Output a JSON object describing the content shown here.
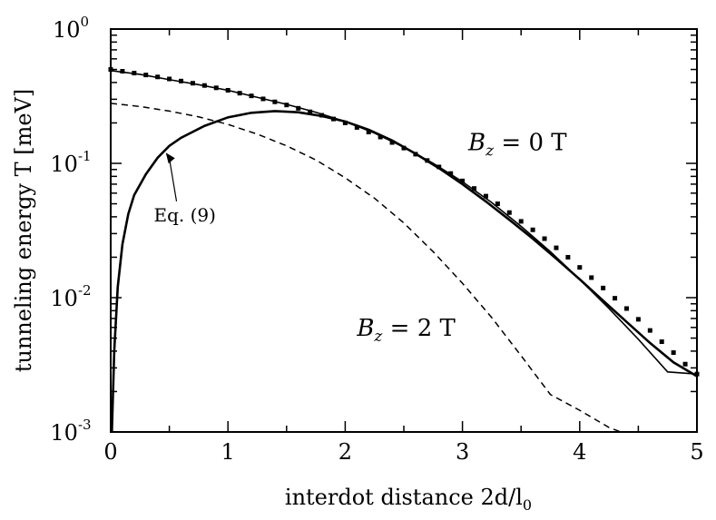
{
  "chart_data": {
    "type": "line",
    "xlabel": "interdot distance 2d/l",
    "xlabel_sub": "0",
    "ylabel": "tunneling energy T [meV]",
    "xlim": [
      0,
      5
    ],
    "ylim": [
      0.001,
      1
    ],
    "yscale": "log",
    "grid": false,
    "x_ticks": [
      0,
      1,
      2,
      3,
      4,
      5
    ],
    "y_ticks": [
      {
        "value": 0.001,
        "base": "10",
        "exp": "-3"
      },
      {
        "value": 0.01,
        "base": "10",
        "exp": "-2"
      },
      {
        "value": 0.1,
        "base": "10",
        "exp": "-1"
      },
      {
        "value": 1,
        "base": "10",
        "exp": "0"
      }
    ],
    "series": [
      {
        "style": "solid-thin",
        "x": [
          0,
          0.25,
          0.5,
          0.75,
          1.0,
          1.25,
          1.5,
          1.75,
          2.0,
          2.25,
          2.5,
          2.75,
          3.0,
          3.25,
          3.5,
          3.75,
          4.0,
          4.25,
          4.5,
          4.75,
          5.0
        ],
        "values": [
          0.49,
          0.46,
          0.42,
          0.385,
          0.35,
          0.31,
          0.275,
          0.24,
          0.205,
          0.168,
          0.132,
          0.1,
          0.073,
          0.051,
          0.034,
          0.022,
          0.0137,
          0.0083,
          0.0049,
          0.0028,
          0.0027
        ]
      },
      {
        "style": "squares",
        "x": [
          0,
          0.1,
          0.2,
          0.3,
          0.4,
          0.5,
          0.6,
          0.7,
          0.8,
          0.9,
          1.0,
          1.1,
          1.2,
          1.3,
          1.4,
          1.5,
          1.6,
          1.7,
          1.8,
          1.9,
          2.0,
          2.1,
          2.2,
          2.3,
          2.4,
          2.5,
          2.6,
          2.7,
          2.8,
          2.9,
          3.0,
          3.1,
          3.2,
          3.3,
          3.4,
          3.5,
          3.6,
          3.7,
          3.8,
          3.9,
          4.0,
          4.1,
          4.2,
          4.3,
          4.4,
          4.5,
          4.6,
          4.7,
          4.8,
          4.9,
          5.0
        ],
        "values": [
          0.5,
          0.485,
          0.47,
          0.455,
          0.44,
          0.425,
          0.41,
          0.395,
          0.38,
          0.365,
          0.35,
          0.333,
          0.318,
          0.302,
          0.287,
          0.272,
          0.257,
          0.242,
          0.228,
          0.214,
          0.2,
          0.185,
          0.171,
          0.157,
          0.143,
          0.13,
          0.117,
          0.105,
          0.094,
          0.084,
          0.074,
          0.065,
          0.057,
          0.05,
          0.043,
          0.037,
          0.032,
          0.0275,
          0.0235,
          0.02,
          0.0168,
          0.0141,
          0.0118,
          0.0099,
          0.0083,
          0.0069,
          0.0057,
          0.0047,
          0.0039,
          0.0032,
          0.0027
        ]
      },
      {
        "style": "solid-thick",
        "x": [
          0.01,
          0.03,
          0.06,
          0.1,
          0.15,
          0.2,
          0.3,
          0.4,
          0.5,
          0.6,
          0.8,
          1.0,
          1.2,
          1.4,
          1.6,
          1.8,
          2.0,
          2.2,
          2.4,
          2.6,
          2.8,
          3.0,
          3.2,
          3.4,
          3.6,
          3.8,
          4.0,
          4.2,
          4.4,
          4.6,
          4.8,
          5.0
        ],
        "values": [
          0.001,
          0.004,
          0.012,
          0.025,
          0.042,
          0.058,
          0.083,
          0.11,
          0.135,
          0.155,
          0.19,
          0.22,
          0.238,
          0.245,
          0.24,
          0.225,
          0.205,
          0.178,
          0.148,
          0.118,
          0.092,
          0.07,
          0.052,
          0.038,
          0.0275,
          0.0195,
          0.0137,
          0.0095,
          0.0066,
          0.0046,
          0.0033,
          0.0026
        ]
      },
      {
        "style": "dashed",
        "x": [
          0,
          0.25,
          0.5,
          0.75,
          1.0,
          1.25,
          1.5,
          1.75,
          2.0,
          2.25,
          2.5,
          2.75,
          3.0,
          3.25,
          3.5,
          3.75,
          4.0,
          4.25,
          4.35
        ],
        "values": [
          0.28,
          0.265,
          0.245,
          0.222,
          0.195,
          0.165,
          0.135,
          0.106,
          0.078,
          0.055,
          0.036,
          0.022,
          0.0128,
          0.0071,
          0.0037,
          0.0019,
          0.00145,
          0.00108,
          0.001
        ]
      }
    ],
    "annotations": [
      {
        "text": "Eq. (9)",
        "x": 0.6,
        "y": 0.037
      },
      {
        "text": "B",
        "sub": "z",
        "rest": " = 0 T",
        "x": 3.05,
        "y": 0.125
      },
      {
        "text": "B",
        "sub": "z",
        "rest": " = 2 T",
        "x": 2.1,
        "y": 0.0052
      }
    ]
  }
}
